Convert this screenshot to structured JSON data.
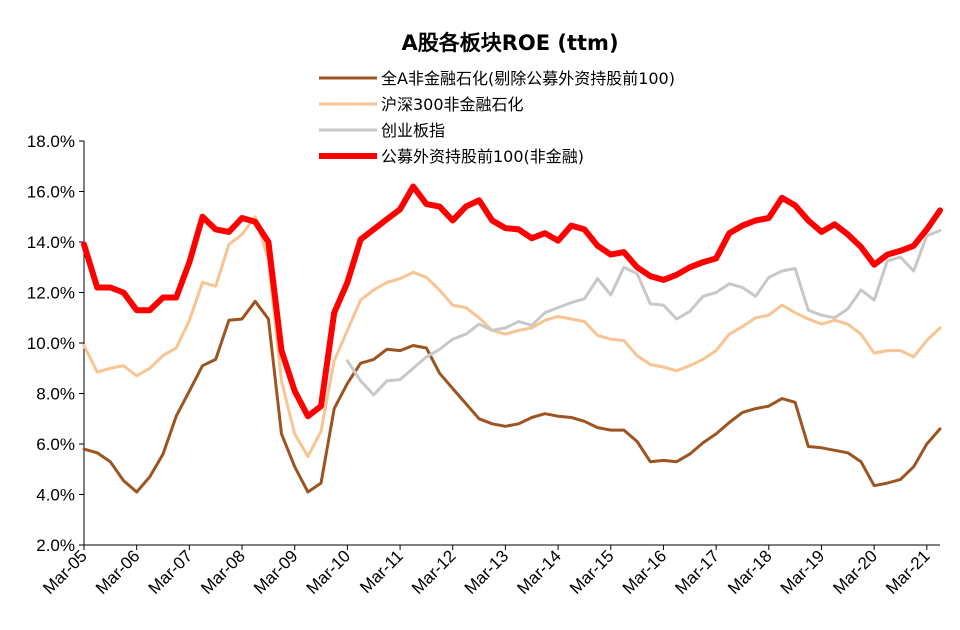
{
  "chart_data": {
    "type": "line",
    "title": "A股各板块ROE (ttm)",
    "xlabel": "",
    "ylabel": "",
    "ylim": [
      2.0,
      18.0
    ],
    "y_ticks": [
      "2.0%",
      "4.0%",
      "6.0%",
      "8.0%",
      "10.0%",
      "12.0%",
      "14.0%",
      "16.0%",
      "18.0%"
    ],
    "x_ticks": [
      "Mar-05",
      "Mar-06",
      "Mar-07",
      "Mar-08",
      "Mar-09",
      "Mar-10",
      "Mar-11",
      "Mar-12",
      "Mar-13",
      "Mar-14",
      "Mar-15",
      "Mar-16",
      "Mar-17",
      "Mar-18",
      "Mar-19",
      "Mar-20",
      "Mar-21"
    ],
    "x_range": [
      "2005-03",
      "2021-06"
    ],
    "legend_position": "top",
    "grid": false,
    "series": [
      {
        "name": "全A非金融石化(剔除公募外资持股前100)",
        "color": "#9C5520",
        "width": 3,
        "x": [
          "2005-03",
          "2005-06",
          "2005-09",
          "2005-12",
          "2006-03",
          "2006-06",
          "2006-09",
          "2006-12",
          "2007-03",
          "2007-06",
          "2007-09",
          "2007-12",
          "2008-03",
          "2008-06",
          "2008-09",
          "2008-12",
          "2009-03",
          "2009-06",
          "2009-09",
          "2009-12",
          "2010-03",
          "2010-06",
          "2010-09",
          "2010-12",
          "2011-03",
          "2011-06",
          "2011-09",
          "2011-12",
          "2012-03",
          "2012-06",
          "2012-09",
          "2012-12",
          "2013-03",
          "2013-06",
          "2013-09",
          "2013-12",
          "2014-03",
          "2014-06",
          "2014-09",
          "2014-12",
          "2015-03",
          "2015-06",
          "2015-09",
          "2015-12",
          "2016-03",
          "2016-06",
          "2016-09",
          "2016-12",
          "2017-03",
          "2017-06",
          "2017-09",
          "2017-12",
          "2018-03",
          "2018-06",
          "2018-09",
          "2018-12",
          "2019-03",
          "2019-06",
          "2019-09",
          "2019-12",
          "2020-03",
          "2020-06",
          "2020-09",
          "2020-12",
          "2021-03",
          "2021-06"
        ],
        "y": [
          5.8,
          5.65,
          5.3,
          4.55,
          4.1,
          4.7,
          5.6,
          7.1,
          8.1,
          9.1,
          9.35,
          10.9,
          10.95,
          11.65,
          10.95,
          6.4,
          5.1,
          4.1,
          4.45,
          7.4,
          8.4,
          9.2,
          9.35,
          9.75,
          9.7,
          9.9,
          9.8,
          8.8,
          8.2,
          7.6,
          7.0,
          6.8,
          6.7,
          6.8,
          7.05,
          7.2,
          7.1,
          7.05,
          6.9,
          6.65,
          6.55,
          6.55,
          6.1,
          5.3,
          5.35,
          5.3,
          5.6,
          6.05,
          6.4,
          6.85,
          7.25,
          7.4,
          7.5,
          7.8,
          7.65,
          5.9,
          5.85,
          5.75,
          5.65,
          5.3,
          4.35,
          4.45,
          4.6,
          5.1,
          6.0,
          6.6
        ]
      },
      {
        "name": "沪深300非金融石化",
        "color": "#F7C492",
        "width": 3,
        "x": [
          "2005-03",
          "2005-06",
          "2005-09",
          "2005-12",
          "2006-03",
          "2006-06",
          "2006-09",
          "2006-12",
          "2007-03",
          "2007-06",
          "2007-09",
          "2007-12",
          "2008-03",
          "2008-06",
          "2008-09",
          "2008-12",
          "2009-03",
          "2009-06",
          "2009-09",
          "2009-12",
          "2010-03",
          "2010-06",
          "2010-09",
          "2010-12",
          "2011-03",
          "2011-06",
          "2011-09",
          "2011-12",
          "2012-03",
          "2012-06",
          "2012-09",
          "2012-12",
          "2013-03",
          "2013-06",
          "2013-09",
          "2013-12",
          "2014-03",
          "2014-06",
          "2014-09",
          "2014-12",
          "2015-03",
          "2015-06",
          "2015-09",
          "2015-12",
          "2016-03",
          "2016-06",
          "2016-09",
          "2016-12",
          "2017-03",
          "2017-06",
          "2017-09",
          "2017-12",
          "2018-03",
          "2018-06",
          "2018-09",
          "2018-12",
          "2019-03",
          "2019-06",
          "2019-09",
          "2019-12",
          "2020-03",
          "2020-06",
          "2020-09",
          "2020-12",
          "2021-03",
          "2021-06"
        ],
        "y": [
          9.9,
          8.85,
          9.0,
          9.1,
          8.7,
          9.0,
          9.5,
          9.8,
          10.9,
          12.4,
          12.25,
          13.9,
          14.3,
          15.0,
          13.3,
          8.5,
          6.4,
          5.5,
          6.5,
          9.3,
          10.5,
          11.7,
          12.1,
          12.4,
          12.55,
          12.8,
          12.6,
          12.1,
          11.5,
          11.4,
          11.0,
          10.5,
          10.35,
          10.5,
          10.6,
          10.9,
          11.05,
          10.95,
          10.85,
          10.3,
          10.15,
          10.1,
          9.5,
          9.15,
          9.05,
          8.9,
          9.1,
          9.35,
          9.7,
          10.35,
          10.65,
          11.0,
          11.1,
          11.5,
          11.2,
          10.95,
          10.75,
          10.9,
          10.75,
          10.35,
          9.6,
          9.7,
          9.7,
          9.45,
          10.1,
          10.6
        ]
      },
      {
        "name": "创业板指",
        "color": "#C8C8C8",
        "width": 3,
        "x": [
          "2010-03",
          "2010-06",
          "2010-09",
          "2010-12",
          "2011-03",
          "2011-06",
          "2011-09",
          "2011-12",
          "2012-03",
          "2012-06",
          "2012-09",
          "2012-12",
          "2013-03",
          "2013-06",
          "2013-09",
          "2013-12",
          "2014-03",
          "2014-06",
          "2014-09",
          "2014-12",
          "2015-03",
          "2015-06",
          "2015-09",
          "2015-12",
          "2016-03",
          "2016-06",
          "2016-09",
          "2016-12",
          "2017-03",
          "2017-06",
          "2017-09",
          "2017-12",
          "2018-03",
          "2018-06",
          "2018-09",
          "2018-12",
          "2019-03",
          "2019-06",
          "2019-09",
          "2019-12",
          "2020-03",
          "2020-06",
          "2020-09",
          "2020-12",
          "2021-03",
          "2021-06"
        ],
        "y": [
          9.3,
          8.5,
          7.95,
          8.5,
          8.55,
          9.0,
          9.45,
          9.75,
          10.15,
          10.35,
          10.75,
          10.5,
          10.6,
          10.85,
          10.7,
          11.2,
          11.4,
          11.6,
          11.75,
          12.55,
          11.9,
          13.0,
          12.75,
          11.55,
          11.5,
          10.95,
          11.25,
          11.85,
          12.0,
          12.35,
          12.2,
          11.85,
          12.6,
          12.85,
          12.95,
          11.3,
          11.1,
          11.0,
          11.35,
          12.1,
          11.7,
          13.25,
          13.4,
          12.85,
          14.25,
          14.45
        ]
      },
      {
        "name": "公募外资持股前100(非金融)",
        "color": "#FF0000",
        "width": 6,
        "x": [
          "2005-03",
          "2005-06",
          "2005-09",
          "2005-12",
          "2006-03",
          "2006-06",
          "2006-09",
          "2006-12",
          "2007-03",
          "2007-06",
          "2007-09",
          "2007-12",
          "2008-03",
          "2008-06",
          "2008-09",
          "2008-12",
          "2009-03",
          "2009-06",
          "2009-09",
          "2009-12",
          "2010-03",
          "2010-06",
          "2010-09",
          "2010-12",
          "2011-03",
          "2011-06",
          "2011-09",
          "2011-12",
          "2012-03",
          "2012-06",
          "2012-09",
          "2012-12",
          "2013-03",
          "2013-06",
          "2013-09",
          "2013-12",
          "2014-03",
          "2014-06",
          "2014-09",
          "2014-12",
          "2015-03",
          "2015-06",
          "2015-09",
          "2015-12",
          "2016-03",
          "2016-06",
          "2016-09",
          "2016-12",
          "2017-03",
          "2017-06",
          "2017-09",
          "2017-12",
          "2018-03",
          "2018-06",
          "2018-09",
          "2018-12",
          "2019-03",
          "2019-06",
          "2019-09",
          "2019-12",
          "2020-03",
          "2020-06",
          "2020-09",
          "2020-12",
          "2021-03",
          "2021-06"
        ],
        "y": [
          13.9,
          12.2,
          12.2,
          12.0,
          11.3,
          11.3,
          11.8,
          11.8,
          13.2,
          15.0,
          14.5,
          14.4,
          14.95,
          14.8,
          14.0,
          9.7,
          8.1,
          7.1,
          7.5,
          11.2,
          12.4,
          14.1,
          14.5,
          14.9,
          15.3,
          16.2,
          15.5,
          15.4,
          14.85,
          15.4,
          15.65,
          14.85,
          14.55,
          14.5,
          14.15,
          14.35,
          14.05,
          14.65,
          14.5,
          13.85,
          13.5,
          13.6,
          13.0,
          12.65,
          12.5,
          12.7,
          13.0,
          13.2,
          13.35,
          14.35,
          14.65,
          14.85,
          14.95,
          15.75,
          15.45,
          14.85,
          14.4,
          14.7,
          14.3,
          13.8,
          13.1,
          13.5,
          13.65,
          13.85,
          14.5,
          15.25
        ]
      }
    ]
  }
}
